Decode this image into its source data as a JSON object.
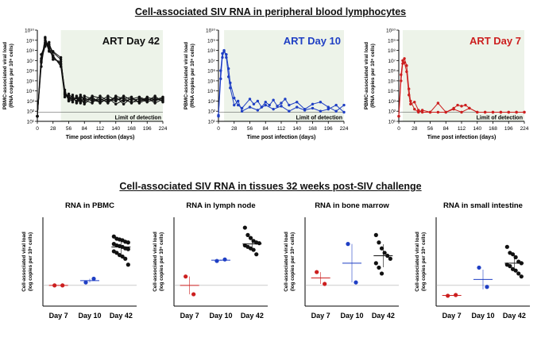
{
  "titles": {
    "top": "Cell-associated SIV RNA in peripheral blood lymphocytes",
    "bottom": "Cell-associated SIV RNA in tissues 32 weeks post-SIV challenge"
  },
  "colors": {
    "day42": "#111111",
    "day10": "#1f3fc4",
    "day7": "#cc1f1f"
  },
  "chart_data": [
    {
      "type": "line",
      "title": "ART Day 42",
      "ylabel": "PBMC-associated viral load\n(RNA copies per 10⁶ cells)",
      "xlabel": "Time post infection (days)",
      "xticks": [
        "0",
        "28",
        "56",
        "84",
        "112",
        "140",
        "168",
        "196",
        "224"
      ],
      "yticks": [
        "10¹",
        "10²",
        "10³",
        "10⁴",
        "10⁵",
        "10⁶",
        "10⁷",
        "10⁸",
        "10⁹",
        "10¹⁰"
      ],
      "ylim_log10": [
        1,
        10
      ],
      "xlim": [
        0,
        224
      ],
      "art_start_day": 42,
      "lod_log10": 1.9,
      "lod_label": "Limit of detection",
      "series": [
        {
          "x": [
            0,
            7,
            14,
            21,
            28,
            42,
            49,
            56,
            63,
            70,
            77,
            84,
            98,
            112,
            126,
            140,
            154,
            168,
            182,
            196,
            210,
            224
          ],
          "y": [
            1.5,
            6.8,
            9.2,
            8.2,
            7.3,
            6.7,
            3.7,
            3.5,
            3.1,
            3.4,
            2.9,
            3.3,
            3.0,
            3.2,
            2.9,
            3.3,
            3.0,
            3.2,
            3.4,
            3.1,
            3.3,
            3.0
          ]
        },
        {
          "x": [
            0,
            7,
            14,
            21,
            28,
            42,
            49,
            56,
            63,
            70,
            77,
            84,
            98,
            112,
            126,
            140,
            154,
            168,
            182,
            196,
            210,
            224
          ],
          "y": [
            1.5,
            7.2,
            8.8,
            8.6,
            7.8,
            7.1,
            3.9,
            3.2,
            3.6,
            2.8,
            3.2,
            2.7,
            3.4,
            2.8,
            3.3,
            2.7,
            3.1,
            2.9,
            3.0,
            3.3,
            2.8,
            3.2
          ]
        },
        {
          "x": [
            0,
            7,
            14,
            21,
            28,
            42,
            49,
            56,
            63,
            70,
            77,
            84,
            98,
            112,
            126,
            140,
            154,
            168,
            182,
            196,
            210,
            224
          ],
          "y": [
            1.5,
            6.4,
            9.0,
            7.9,
            7.5,
            6.4,
            3.4,
            3.7,
            3.3,
            3.0,
            3.6,
            3.1,
            2.8,
            3.5,
            3.0,
            3.4,
            2.7,
            3.3,
            2.9,
            3.4,
            3.1,
            3.4
          ]
        },
        {
          "x": [
            0,
            7,
            14,
            21,
            28,
            42,
            49,
            56,
            63,
            70,
            77,
            84,
            98,
            112,
            126,
            140,
            154,
            168,
            182,
            196,
            210,
            224
          ],
          "y": [
            1.5,
            7.6,
            8.6,
            8.4,
            7.1,
            6.9,
            4.1,
            3.0,
            3.1,
            3.3,
            2.8,
            3.5,
            3.2,
            3.0,
            3.5,
            3.1,
            3.3,
            2.8,
            3.3,
            3.0,
            3.5,
            2.9
          ]
        },
        {
          "x": [
            0,
            7,
            14,
            21,
            28,
            42,
            49,
            56,
            63,
            70,
            77,
            84,
            98,
            112,
            126,
            140,
            154,
            168,
            182,
            196,
            210,
            224
          ],
          "y": [
            1.5,
            6.9,
            9.3,
            8.0,
            7.9,
            7.3,
            3.6,
            3.4,
            2.9,
            3.5,
            3.1,
            2.9,
            3.5,
            3.3,
            2.8,
            3.5,
            3.2,
            3.4,
            2.8,
            3.2,
            3.0,
            3.3
          ]
        },
        {
          "x": [
            0,
            7,
            14,
            21,
            28,
            42,
            49,
            56,
            63,
            70,
            77,
            84,
            98,
            112,
            126,
            140,
            154,
            168,
            182,
            196,
            210,
            224
          ],
          "y": [
            1.5,
            7.0,
            8.4,
            8.8,
            7.4,
            6.6,
            3.8,
            3.1,
            3.4,
            2.9,
            3.4,
            3.2,
            3.1,
            2.9,
            3.2,
            3.0,
            3.5,
            3.1,
            3.2,
            2.9,
            3.2,
            3.1
          ]
        }
      ]
    },
    {
      "type": "line",
      "title": "ART Day 10",
      "ylabel": "PBMC-associated viral load\n(RNA copies per 10⁶ cells)",
      "xlabel": "Time post infection (days)",
      "xticks": [
        "0",
        "28",
        "56",
        "84",
        "112",
        "140",
        "168",
        "196",
        "224"
      ],
      "yticks": [
        "10¹",
        "10²",
        "10³",
        "10⁴",
        "10⁵",
        "10⁶",
        "10⁷",
        "10⁸",
        "10⁹",
        "10¹⁰"
      ],
      "ylim_log10": [
        1,
        10
      ],
      "xlim": [
        0,
        224
      ],
      "art_start_day": 10,
      "lod_log10": 1.9,
      "lod_label": "Limit of detection",
      "series": [
        {
          "x": [
            0,
            4,
            7,
            10,
            14,
            18,
            21,
            28,
            35,
            42,
            56,
            63,
            70,
            77,
            84,
            91,
            98,
            105,
            112,
            119,
            126,
            140,
            154,
            168,
            182,
            196,
            210,
            224
          ],
          "y": [
            1.6,
            5.2,
            7.3,
            7.9,
            7.6,
            6.2,
            4.8,
            3.3,
            2.6,
            2.3,
            3.2,
            2.7,
            3.0,
            2.4,
            2.9,
            2.6,
            3.1,
            2.5,
            2.8,
            3.2,
            2.6,
            2.9,
            2.2,
            2.7,
            2.9,
            2.4,
            2.0,
            2.6
          ]
        },
        {
          "x": [
            0,
            4,
            7,
            10,
            14,
            18,
            21,
            28,
            35,
            42,
            56,
            70,
            84,
            98,
            112,
            126,
            140,
            154,
            168,
            182,
            196,
            210,
            224
          ],
          "y": [
            1.5,
            6.0,
            7.7,
            8.0,
            7.3,
            5.4,
            4.3,
            2.6,
            3.0,
            2.0,
            2.4,
            2.1,
            2.6,
            2.2,
            2.5,
            2.0,
            2.4,
            2.1,
            2.3,
            2.0,
            2.2,
            2.6,
            1.9
          ]
        }
      ]
    },
    {
      "type": "line",
      "title": "ART Day 7",
      "ylabel": "PBMC-associated viral load\n(RNA copies per 10⁶ cells)",
      "xlabel": "Time post infection (days)",
      "xticks": [
        "0",
        "28",
        "56",
        "84",
        "112",
        "140",
        "168",
        "196",
        "224"
      ],
      "yticks": [
        "10¹",
        "10²",
        "10³",
        "10⁴",
        "10⁵",
        "10⁶",
        "10⁷",
        "10⁸",
        "10⁹",
        "10¹⁰"
      ],
      "ylim_log10": [
        1,
        10
      ],
      "xlim": [
        0,
        224
      ],
      "art_start_day": 7,
      "lod_log10": 1.9,
      "lod_label": "Limit of detection",
      "series": [
        {
          "x": [
            0,
            4,
            7,
            10,
            14,
            18,
            21,
            28,
            35,
            42,
            56,
            70,
            84,
            98,
            105,
            112,
            119,
            126,
            140,
            154,
            168,
            182,
            196,
            210,
            224
          ],
          "y": [
            1.5,
            5.0,
            6.7,
            7.2,
            6.5,
            4.2,
            3.0,
            2.2,
            1.9,
            2.1,
            1.9,
            2.8,
            1.9,
            2.3,
            2.6,
            2.5,
            2.6,
            2.3,
            1.9,
            1.9,
            1.9,
            1.9,
            1.9,
            1.9,
            1.9
          ]
        },
        {
          "x": [
            0,
            4,
            7,
            10,
            14,
            18,
            21,
            28,
            35,
            42,
            56,
            70,
            84,
            98,
            112,
            126,
            140,
            154,
            168,
            182,
            196,
            210,
            224
          ],
          "y": [
            1.5,
            5.6,
            7.0,
            6.8,
            5.9,
            3.6,
            2.7,
            2.9,
            2.1,
            1.9,
            1.9,
            1.9,
            1.9,
            2.2,
            1.9,
            2.3,
            1.9,
            1.9,
            1.9,
            1.9,
            1.9,
            1.9,
            1.9
          ]
        }
      ]
    },
    {
      "type": "scatter",
      "title": "RNA in PBMC",
      "ylabel": "Cell-associated viral load\n(log copies per 10⁶ cells)",
      "categories": [
        "Day 7",
        "Day 10",
        "Day 42"
      ],
      "ylim": [
        0,
        6
      ],
      "lod": 1.4,
      "groups": [
        {
          "category": "Day 7",
          "color": "day7",
          "points": [
            1.4,
            1.4
          ],
          "mean": 1.4
        },
        {
          "category": "Day 10",
          "color": "day10",
          "points": [
            1.6,
            1.85
          ],
          "mean": 1.72
        },
        {
          "category": "Day 42",
          "color": "day42",
          "points": [
            4.7,
            4.55,
            4.5,
            4.45,
            4.35,
            4.3,
            4.2,
            4.1,
            4.05,
            4.0,
            3.9,
            3.85,
            3.7,
            3.6,
            3.45,
            3.35,
            3.2,
            2.8
          ],
          "mean": 4.0
        }
      ]
    },
    {
      "type": "scatter",
      "title": "RNA in lymph node",
      "ylabel": "Cell-associated viral load\n(log copies per 10⁶ cells)",
      "categories": [
        "Day 7",
        "Day 10",
        "Day 42"
      ],
      "ylim": [
        0,
        6
      ],
      "lod": 1.4,
      "groups": [
        {
          "category": "Day 7",
          "color": "day7",
          "points": [
            2.0,
            0.8
          ],
          "mean": 1.4
        },
        {
          "category": "Day 10",
          "color": "day10",
          "points": [
            3.05,
            3.15
          ],
          "mean": 3.1
        },
        {
          "category": "Day 42",
          "color": "day42",
          "points": [
            5.3,
            4.8,
            4.6,
            4.4,
            4.3,
            4.25,
            4.1,
            4.0,
            3.9,
            3.8,
            3.5
          ],
          "mean": 4.2
        }
      ]
    },
    {
      "type": "scatter",
      "title": "RNA in bone marrow",
      "ylabel": "Cell-associated viral load\n(log copies per 10⁶ cells)",
      "categories": [
        "Day 7",
        "Day 10",
        "Day 42"
      ],
      "ylim": [
        0,
        6
      ],
      "lod": 1.4,
      "groups": [
        {
          "category": "Day 7",
          "color": "day7",
          "points": [
            2.3,
            1.5
          ],
          "mean": 1.9
        },
        {
          "category": "Day 10",
          "color": "day10",
          "points": [
            4.2,
            1.6
          ],
          "mean": 2.9
        },
        {
          "category": "Day 42",
          "color": "day42",
          "points": [
            4.8,
            4.3,
            3.9,
            3.6,
            3.4,
            3.2,
            2.9,
            2.6,
            2.2
          ],
          "mean": 3.4
        }
      ]
    },
    {
      "type": "scatter",
      "title": "RNA  in small intestine",
      "ylabel": "Cell-associated viral load\n(log copies per 10⁶ cells)",
      "categories": [
        "Day 7",
        "Day 10",
        "Day 42"
      ],
      "ylim": [
        0,
        6
      ],
      "lod": 1.4,
      "groups": [
        {
          "category": "Day 7",
          "color": "day7",
          "points": [
            0.7,
            0.75
          ],
          "mean": 0.72
        },
        {
          "category": "Day 10",
          "color": "day10",
          "points": [
            2.6,
            1.3
          ],
          "mean": 1.8
        },
        {
          "category": "Day 42",
          "color": "day42",
          "points": [
            4.0,
            3.6,
            3.5,
            3.3,
            3.0,
            2.9,
            2.8,
            2.7,
            2.5,
            2.4,
            2.2,
            2.0
          ],
          "mean": 2.9
        }
      ]
    }
  ]
}
